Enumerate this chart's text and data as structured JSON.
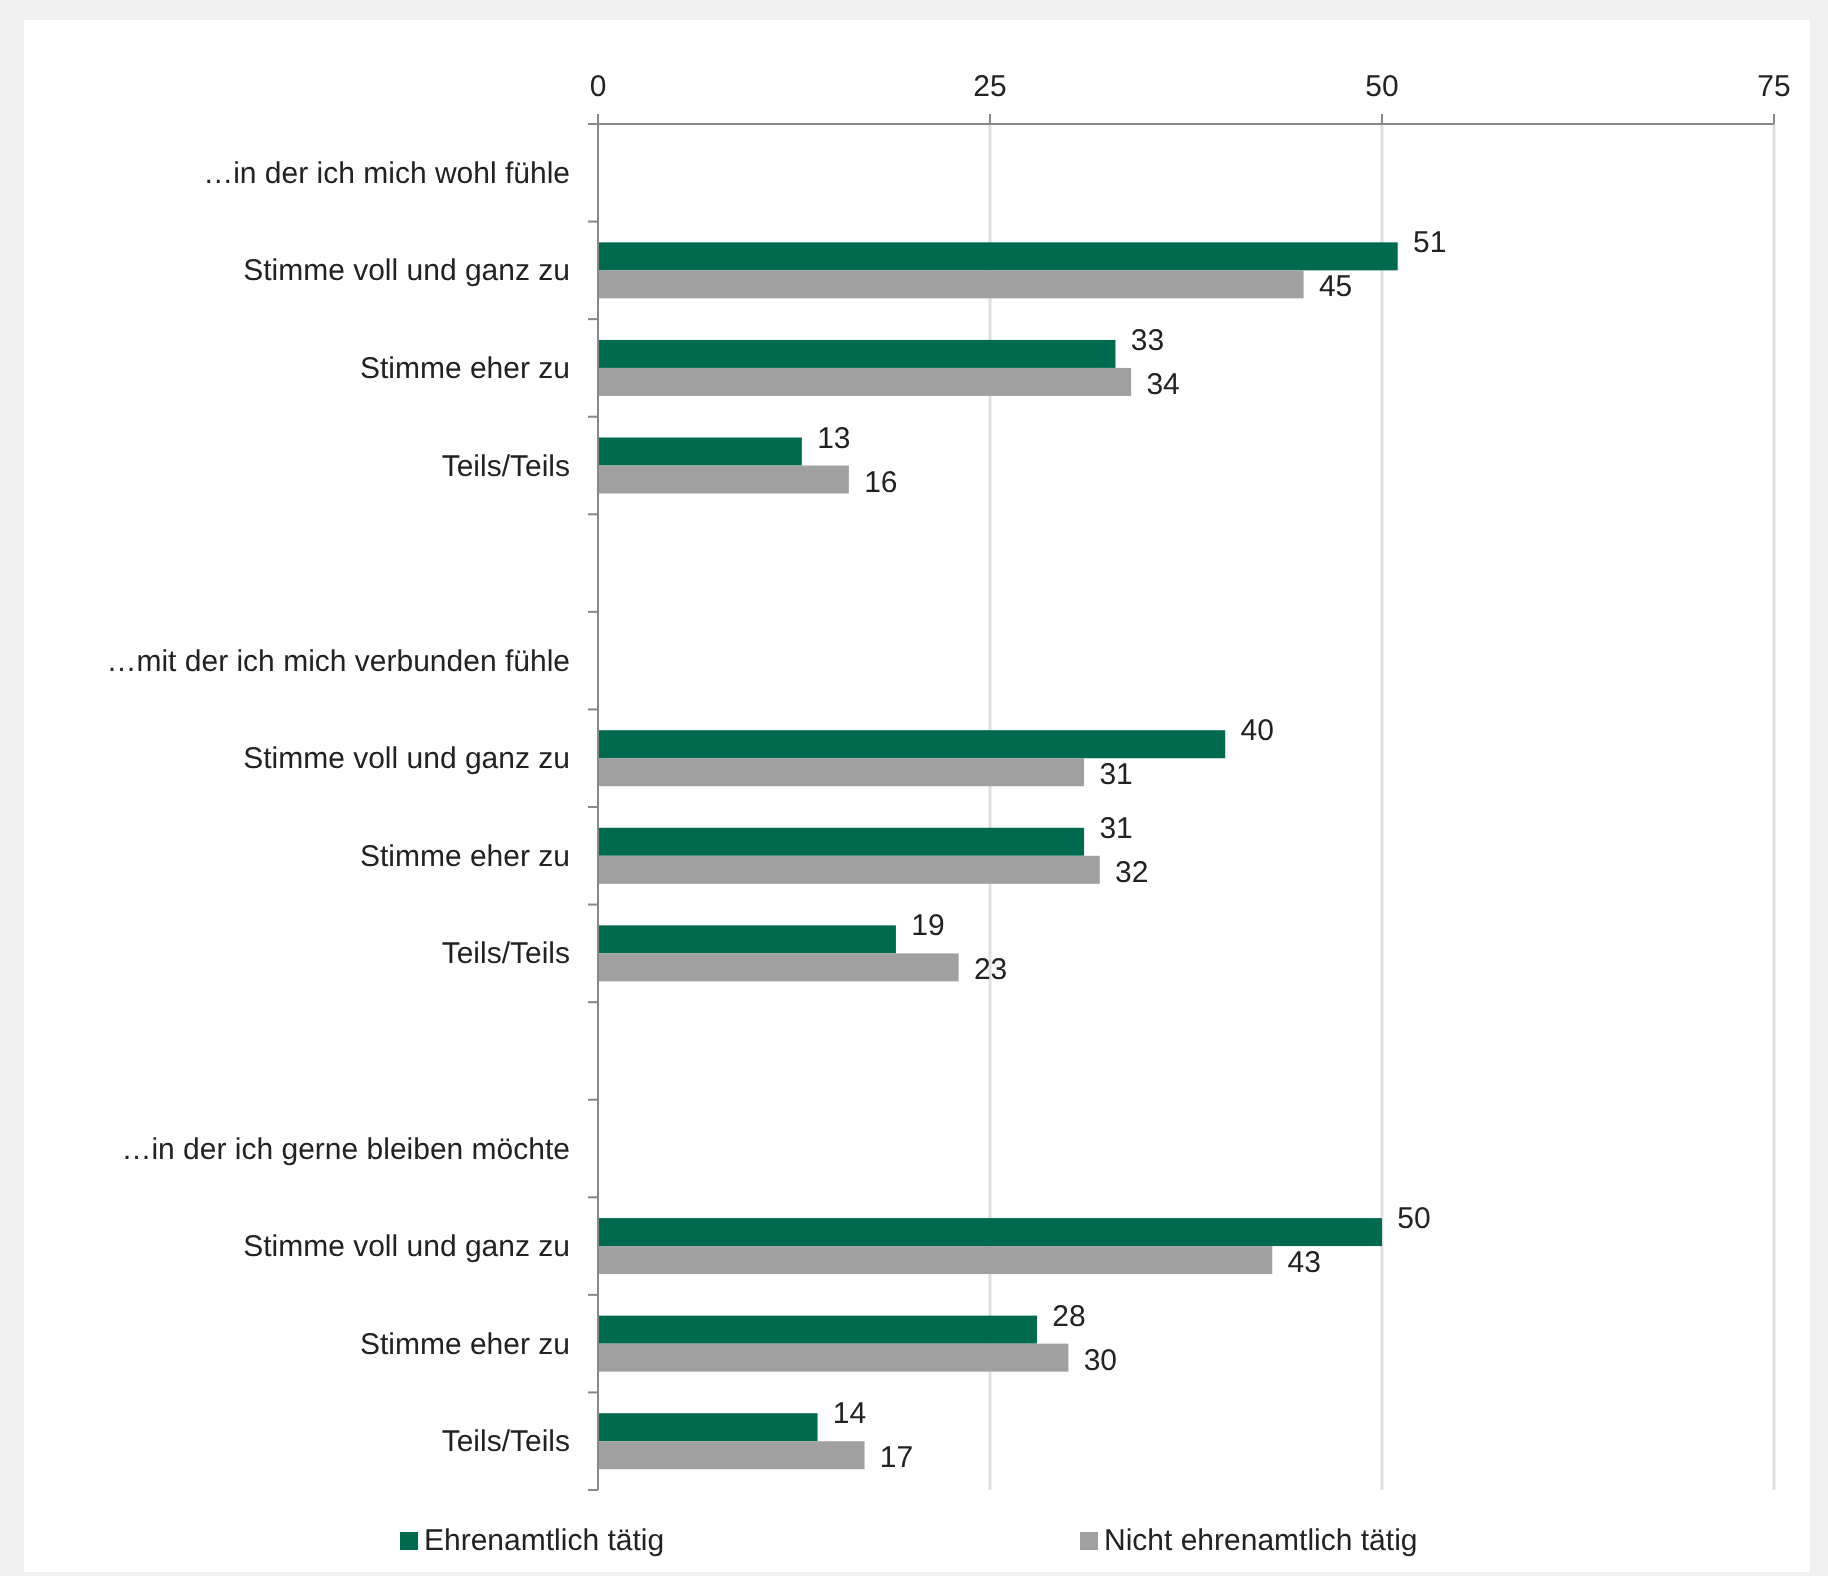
{
  "chart_data": {
    "type": "bar",
    "orientation": "horizontal",
    "categories": [
      "…in der ich mich wohl fühle",
      "Stimme voll und ganz zu",
      "Stimme eher zu",
      "Teils/Teils",
      null,
      "…mit der ich mich verbunden fühle",
      "Stimme voll und ganz zu",
      "Stimme eher zu",
      "Teils/Teils",
      null,
      "…in der ich gerne bleiben möchte",
      "Stimme voll und ganz zu",
      "Stimme eher zu",
      "Teils/Teils"
    ],
    "series": [
      {
        "name": "Ehrenamtlich tätig",
        "color": "#006a4e",
        "values": [
          null,
          51,
          33,
          13,
          null,
          null,
          40,
          31,
          19,
          null,
          null,
          50,
          28,
          14
        ]
      },
      {
        "name": "Nicht ehrenamtlich tätig",
        "color": "#a0a0a0",
        "values": [
          null,
          45,
          34,
          16,
          null,
          null,
          31,
          32,
          23,
          null,
          null,
          43,
          30,
          17
        ]
      }
    ],
    "xlim": [
      0,
      75
    ],
    "xticks": [
      0,
      25,
      50,
      75
    ],
    "grid": "x",
    "data_labels": true,
    "legend": "bottom"
  }
}
